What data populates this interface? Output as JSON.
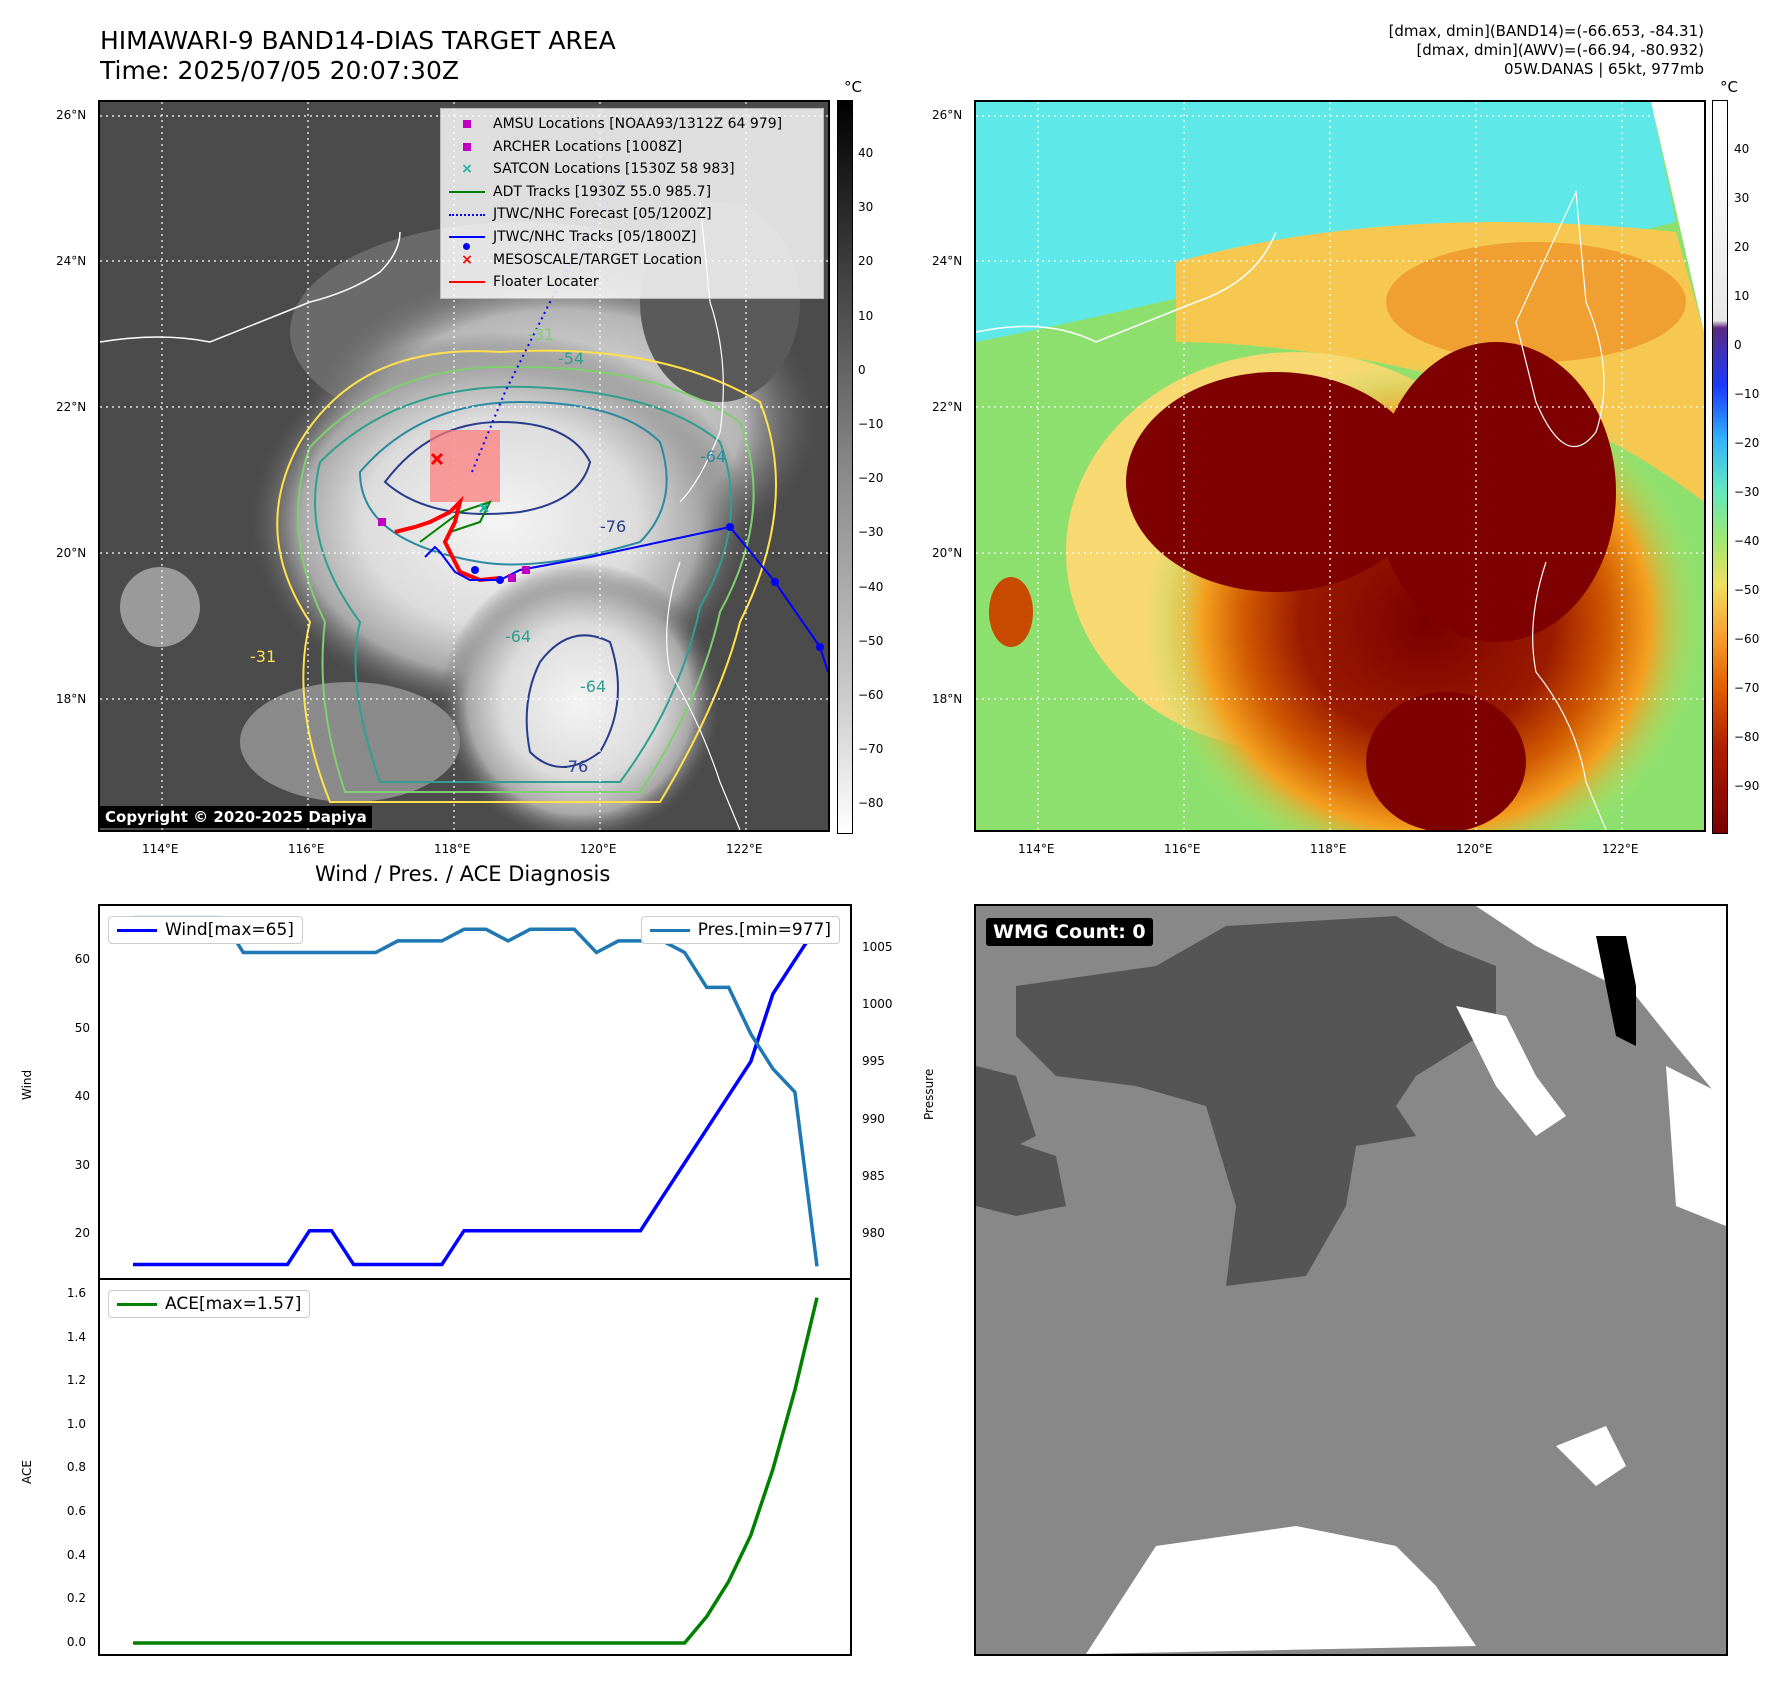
{
  "header": {
    "title_line1": "HIMAWARI-9 BAND14-DIAS TARGET AREA",
    "title_line2": "Time: 2025/07/05 20:07:30Z",
    "info_line1": "[dmax, dmin](BAND14)=(-66.653, -84.31)",
    "info_line2": "[dmax, dmin](AWV)=(-66.94, -80.932)",
    "info_line3": "05W.DANAS | 65kt, 977mb"
  },
  "map": {
    "lat_labels": [
      "26°N",
      "24°N",
      "22°N",
      "20°N",
      "18°N"
    ],
    "lon_labels": [
      "114°E",
      "116°E",
      "118°E",
      "120°E",
      "122°E"
    ],
    "copyright": "Copyright © 2020-2025 Dapiya",
    "contour_labels": [
      "-31",
      "-54",
      "-64",
      "-76",
      "-64",
      "-31",
      "-76",
      "-64"
    ],
    "colors": {
      "track": "#0000ff",
      "adt": "#008000",
      "floater": "#ff0000",
      "amsu": "#c000c0",
      "satcon": "#20b2aa"
    }
  },
  "legend": [
    {
      "label": "AMSU Locations [NOAA93/1312Z 64 979]",
      "symbol": "square",
      "color": "#c000c0"
    },
    {
      "label": "ARCHER Locations [1008Z]",
      "symbol": "square",
      "color": "#c000c0"
    },
    {
      "label": "SATCON Locations [1530Z 58 983]",
      "symbol": "x",
      "color": "#20b2aa"
    },
    {
      "label": "ADT Tracks [1930Z 55.0 985.7]",
      "symbol": "line",
      "color": "#008000"
    },
    {
      "label": "JTWC/NHC Forecast [05/1200Z]",
      "symbol": "dotted",
      "color": "#0000ff"
    },
    {
      "label": "JTWC/NHC Tracks [05/1800Z]",
      "symbol": "linedot",
      "color": "#0000ff"
    },
    {
      "label": "MESOSCALE/TARGET Location",
      "symbol": "x",
      "color": "#ff0000"
    },
    {
      "label": "Floater Locater",
      "symbol": "line",
      "color": "#ff0000"
    }
  ],
  "colorbar_gray": {
    "unit": "°C",
    "ticks": [
      "40",
      "30",
      "20",
      "10",
      "0",
      "−10",
      "−20",
      "−30",
      "−40",
      "−50",
      "−60",
      "−70",
      "−80"
    ]
  },
  "colorbar_color": {
    "unit": "°C",
    "ticks": [
      "40",
      "30",
      "20",
      "10",
      "0",
      "−10",
      "−20",
      "−30",
      "−40",
      "−50",
      "−60",
      "−70",
      "−80",
      "−90"
    ]
  },
  "diagnosis": {
    "title": "Wind / Pres. / ACE Diagnosis",
    "wind_label": "Wind",
    "pres_label": "Pressure",
    "ace_label": "ACE",
    "wind_legend": "Wind[max=65]",
    "pres_legend": "Pres.[min=977]",
    "ace_legend": "ACE[max=1.57]",
    "wind_ticks": [
      "60",
      "50",
      "40",
      "30",
      "20"
    ],
    "pres_ticks": [
      "1005",
      "1000",
      "995",
      "990",
      "985",
      "980"
    ],
    "ace_ticks": [
      "1.6",
      "1.4",
      "1.2",
      "1.0",
      "0.8",
      "0.6",
      "0.4",
      "0.2",
      "0.0"
    ],
    "colors": {
      "wind": "#0000ff",
      "pres": "#1f77b4",
      "ace": "#008000"
    }
  },
  "chart_data": [
    {
      "type": "line",
      "title": "Wind / Pres. / ACE Diagnosis",
      "ylabel": "Wind",
      "ylim": [
        13,
        68
      ],
      "series": [
        {
          "name": "Wind[max=65]",
          "values": [
            15,
            15,
            15,
            15,
            15,
            15,
            15,
            15,
            20,
            20,
            15,
            15,
            15,
            15,
            15,
            20,
            20,
            20,
            20,
            20,
            20,
            20,
            20,
            20,
            25,
            30,
            35,
            40,
            45,
            55,
            60,
            65
          ]
        }
      ]
    },
    {
      "type": "line",
      "ylabel": "Pressure",
      "ylim": [
        976,
        1008
      ],
      "series": [
        {
          "name": "Pres.[min=977]",
          "values": [
            1007,
            1007,
            1007,
            1007,
            1007,
            1004,
            1004,
            1004,
            1004,
            1004,
            1004,
            1004,
            1005,
            1005,
            1005,
            1006,
            1006,
            1005,
            1006,
            1006,
            1006,
            1004,
            1005,
            1005,
            1005,
            1004,
            1001,
            1001,
            997,
            994,
            992,
            977
          ]
        }
      ]
    },
    {
      "type": "line",
      "ylabel": "ACE",
      "ylim": [
        -0.05,
        1.65
      ],
      "series": [
        {
          "name": "ACE[max=1.57]",
          "values": [
            0,
            0,
            0,
            0,
            0,
            0,
            0,
            0,
            0,
            0,
            0,
            0,
            0,
            0,
            0,
            0,
            0,
            0,
            0,
            0,
            0,
            0,
            0,
            0,
            0,
            0,
            0.12,
            0.28,
            0.49,
            0.79,
            1.15,
            1.57
          ]
        }
      ]
    }
  ],
  "wmg": {
    "label": "WMG Count: 0"
  }
}
